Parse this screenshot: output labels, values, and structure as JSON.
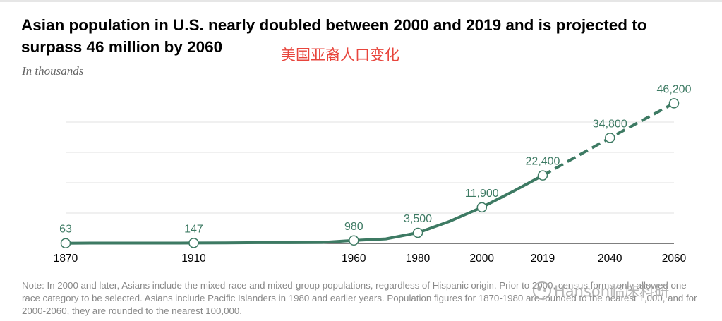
{
  "header": {
    "title": "Asian population in U.S. nearly doubled between 2000 and 2019 and is projected to surpass 46 million by 2060",
    "cn_title": "美国亚裔人口变化",
    "subtitle": "In thousands"
  },
  "note": "Note: In 2000 and later, Asians include the mixed-race and mixed-group populations, regardless of Hispanic origin. Prior to 2000, census forms only allowed one race category to be selected. Asians include Pacific Islanders in 1980 and earlier years. Population figures for 1870-1980 are rounded to the nearest 1,000, and for 2000-2060, they are rounded to the nearest 100,000.",
  "watermark": "Hanson临床科研",
  "colors": {
    "line": "#3d7a63",
    "grid": "#e2e2e2",
    "axis": "#333333",
    "label": "#3d7a63"
  },
  "chart_data": {
    "type": "line",
    "title": "Asian population in U.S. nearly doubled between 2000 and 2019 and is projected to surpass 46 million by 2060",
    "ylabel": "In thousands",
    "xlabel": "",
    "ylim": [
      0,
      50000
    ],
    "grid": true,
    "x": [
      1870,
      1910,
      1960,
      1980,
      2000,
      2019,
      2040,
      2060
    ],
    "x_tick_labels": [
      "1870",
      "1910",
      "1960",
      "1980",
      "2000",
      "2019",
      "2040",
      "2060"
    ],
    "labeled_points": [
      {
        "x": 1870,
        "y": 63,
        "label": "63"
      },
      {
        "x": 1910,
        "y": 147,
        "label": "147"
      },
      {
        "x": 1960,
        "y": 980,
        "label": "980"
      },
      {
        "x": 1980,
        "y": 3500,
        "label": "3,500"
      },
      {
        "x": 2000,
        "y": 11900,
        "label": "11,900"
      },
      {
        "x": 2019,
        "y": 22400,
        "label": "22,400"
      },
      {
        "x": 2040,
        "y": 34800,
        "label": "34,800"
      },
      {
        "x": 2060,
        "y": 46200,
        "label": "46,200"
      }
    ],
    "series": [
      {
        "style": "solid",
        "points": [
          [
            1870,
            63
          ],
          [
            1880,
            106
          ],
          [
            1890,
            110
          ],
          [
            1900,
            120
          ],
          [
            1910,
            147
          ],
          [
            1920,
            182
          ],
          [
            1930,
            265
          ],
          [
            1940,
            255
          ],
          [
            1950,
            320
          ],
          [
            1960,
            980
          ],
          [
            1970,
            1500
          ],
          [
            1980,
            3500
          ],
          [
            1990,
            7300
          ],
          [
            2000,
            11900
          ],
          [
            2010,
            17300
          ],
          [
            2019,
            22400
          ]
        ]
      },
      {
        "style": "dashed",
        "points": [
          [
            2019,
            22400
          ],
          [
            2040,
            34800
          ],
          [
            2060,
            46200
          ]
        ]
      }
    ]
  }
}
